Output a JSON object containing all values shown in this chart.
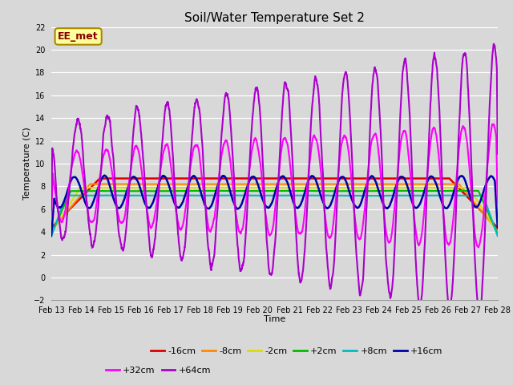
{
  "title": "Soil/Water Temperature Set 2",
  "xlabel": "Time",
  "ylabel": "Temperature (C)",
  "ylim": [
    -2,
    22
  ],
  "yticks": [
    -2,
    0,
    2,
    4,
    6,
    8,
    10,
    12,
    14,
    16,
    18,
    20,
    22
  ],
  "xtick_labels": [
    "Feb 13",
    "Feb 14",
    "Feb 15",
    "Feb 16",
    "Feb 17",
    "Feb 18",
    "Feb 19",
    "Feb 20",
    "Feb 21",
    "Feb 22",
    "Feb 23",
    "Feb 24",
    "Feb 25",
    "Feb 26",
    "Feb 27",
    "Feb 28"
  ],
  "background_color": "#d8d8d8",
  "plot_bg_color": "#d8d8d8",
  "grid_color": "#ffffff",
  "series": [
    {
      "label": "-16cm",
      "color": "#dd0000",
      "linewidth": 1.8
    },
    {
      "label": "-8cm",
      "color": "#ff8800",
      "linewidth": 1.5
    },
    {
      "label": "-2cm",
      "color": "#dddd00",
      "linewidth": 1.5
    },
    {
      "label": "+2cm",
      "color": "#00bb00",
      "linewidth": 1.5
    },
    {
      "label": "+8cm",
      "color": "#00bbbb",
      "linewidth": 1.5
    },
    {
      "label": "+16cm",
      "color": "#0000aa",
      "linewidth": 1.8
    },
    {
      "label": "+32cm",
      "color": "#ff00ff",
      "linewidth": 1.5
    },
    {
      "label": "+64cm",
      "color": "#aa00cc",
      "linewidth": 1.5
    }
  ],
  "annotation_text": "EE_met",
  "annotation_color": "#880000",
  "annotation_bg": "#ffff99",
  "annotation_border": "#aa8800",
  "legend_fontsize": 8,
  "title_fontsize": 11,
  "axis_fontsize": 8,
  "tick_fontsize": 7
}
